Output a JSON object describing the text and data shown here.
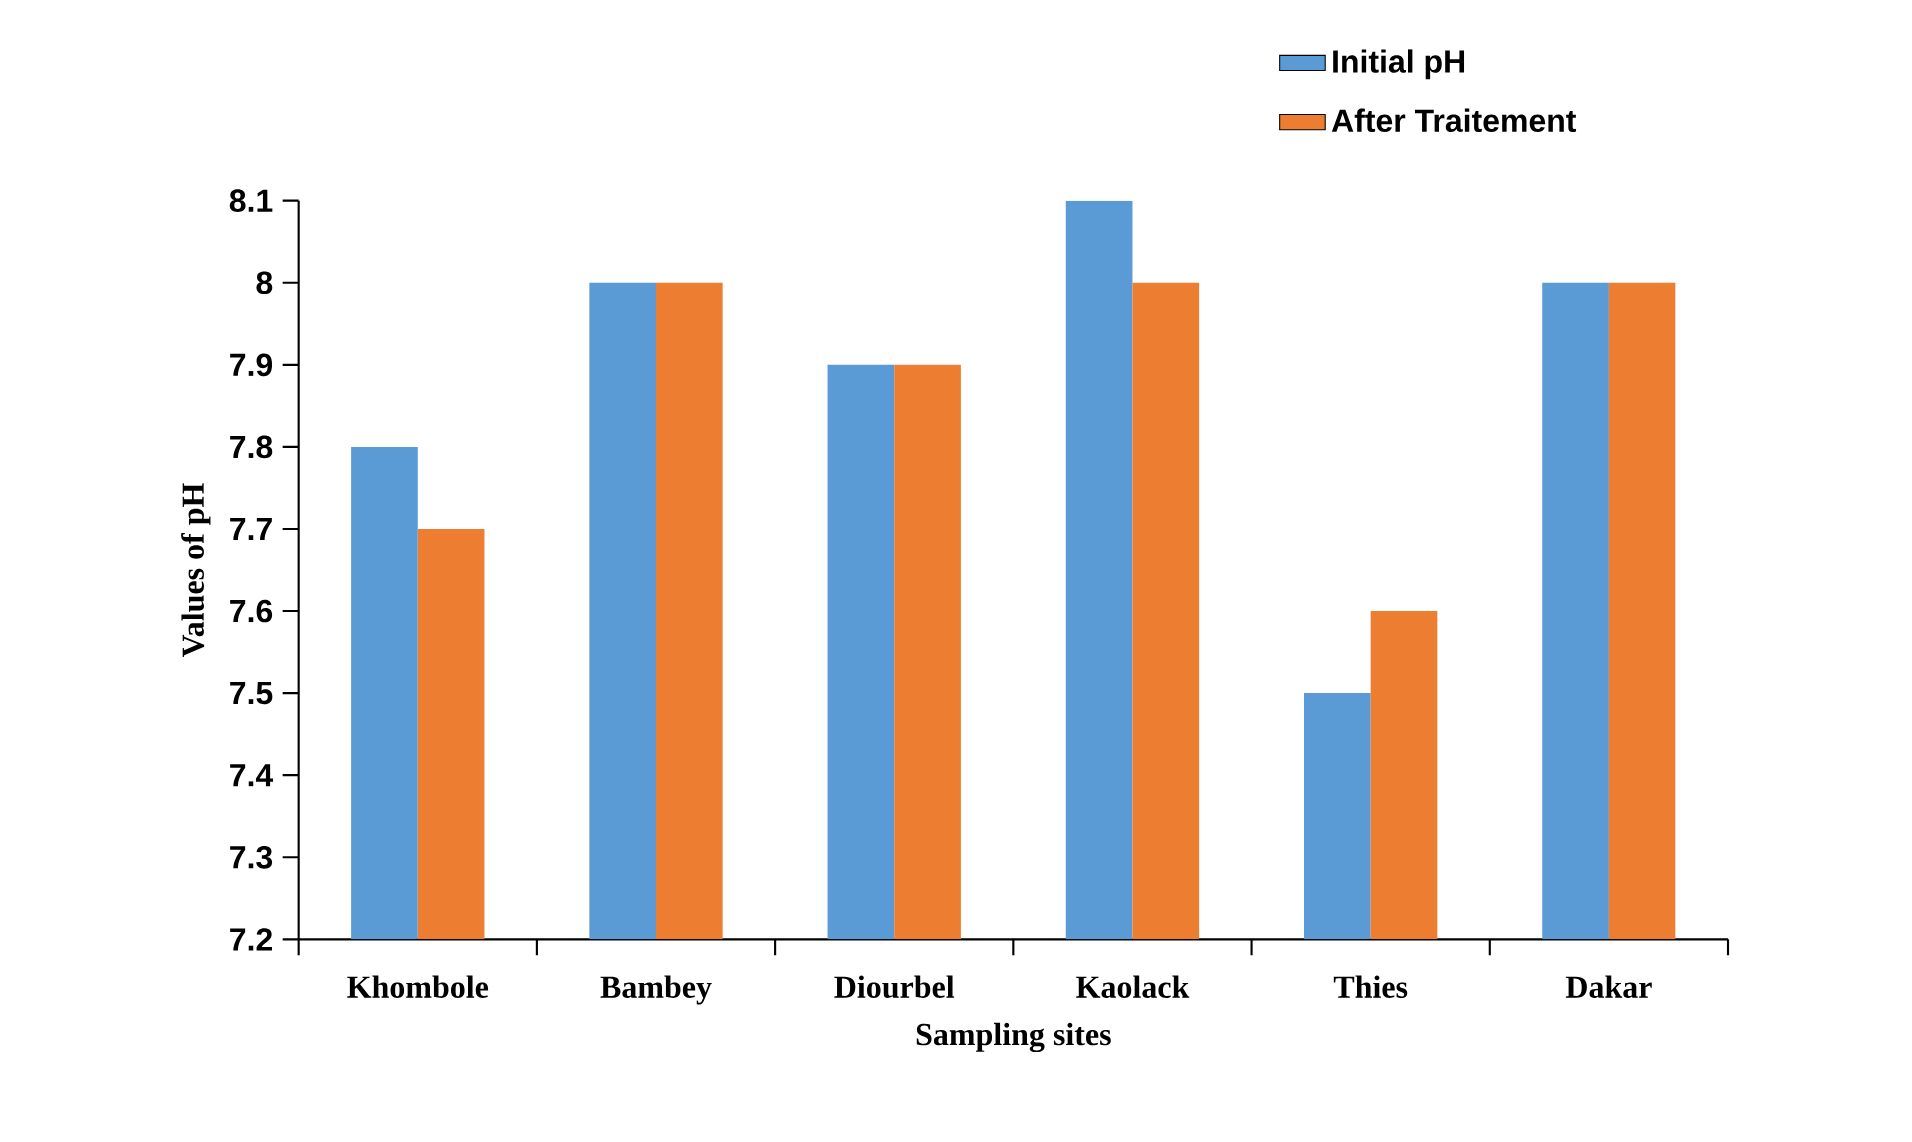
{
  "chart_data": {
    "type": "bar",
    "xlabel": "Sampling sites",
    "ylabel": "Values of pH",
    "categories": [
      "Khombole",
      "Bambey",
      "Diourbel",
      "Kaolack",
      "Thies",
      "Dakar"
    ],
    "series": [
      {
        "name": "Initial pH",
        "color": "#5b9bd5",
        "values": [
          7.8,
          8.0,
          7.9,
          8.1,
          7.5,
          8.0
        ]
      },
      {
        "name": "After Traitement",
        "color": "#ed7d31",
        "values": [
          7.7,
          8.0,
          7.9,
          8.0,
          7.6,
          8.0
        ]
      }
    ],
    "ylim": [
      7.2,
      8.1
    ],
    "yticks": [
      7.2,
      7.3,
      7.4,
      7.5,
      7.6,
      7.7,
      7.8,
      7.9,
      8,
      8.1
    ],
    "grid": false,
    "legend": "top right"
  }
}
